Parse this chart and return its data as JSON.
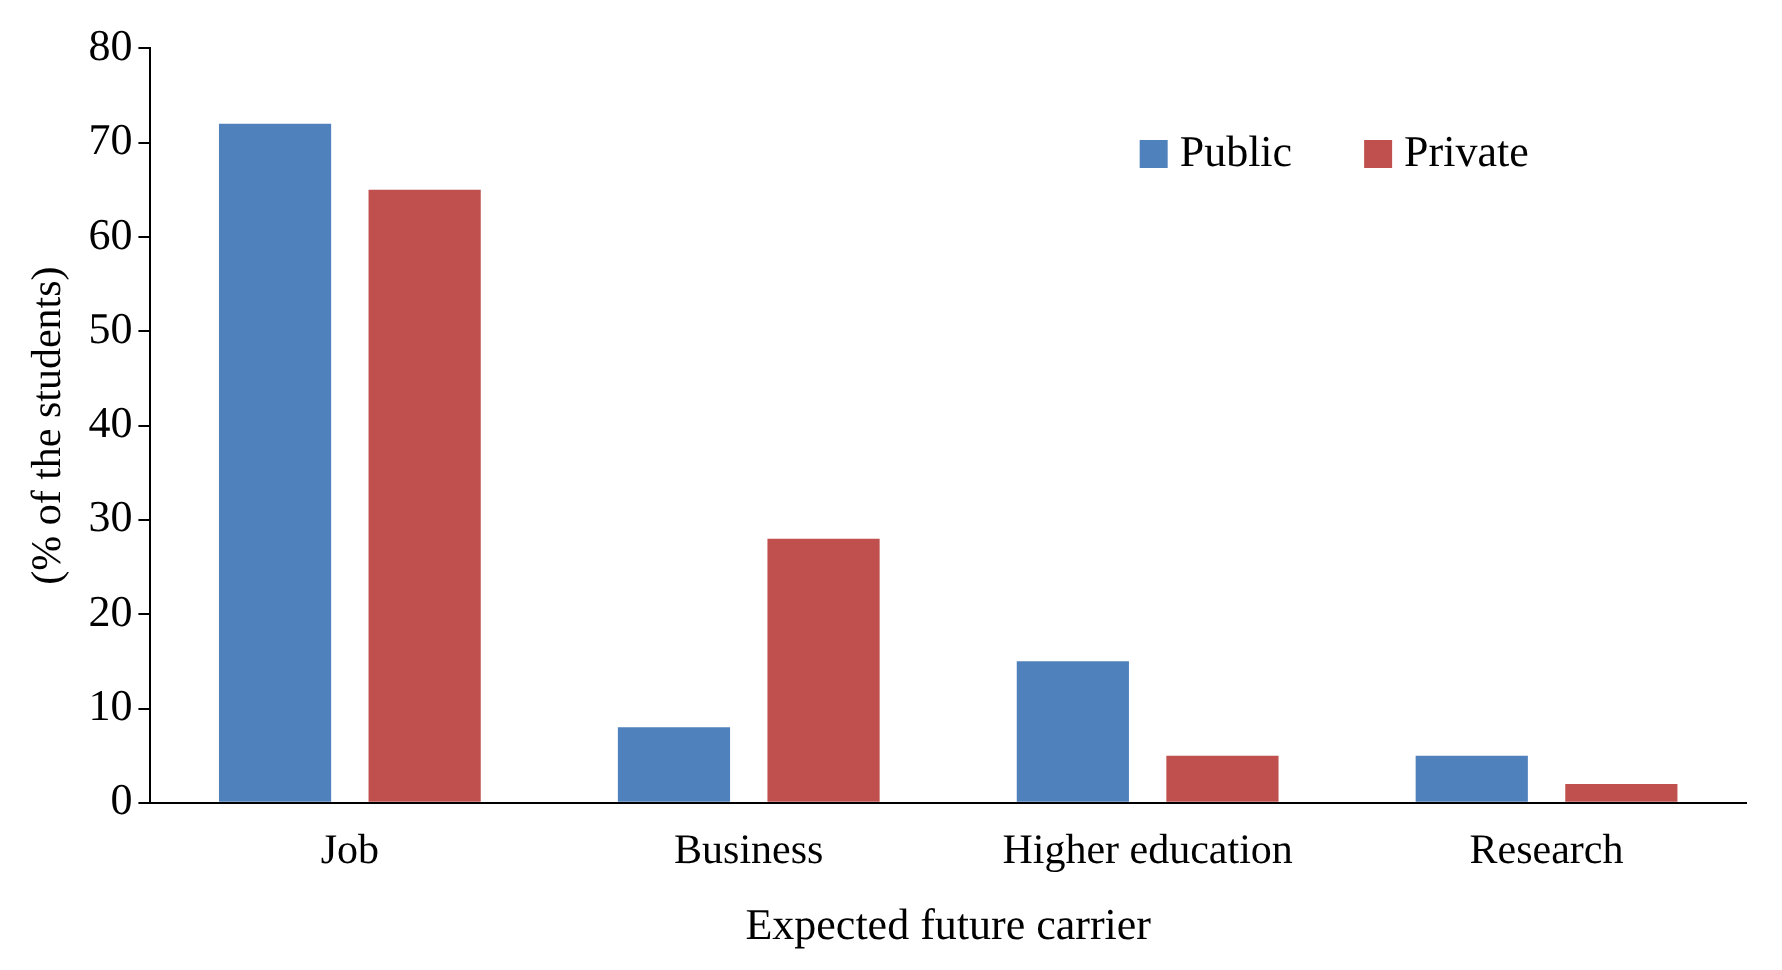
{
  "chart_data": {
    "type": "bar",
    "xlabel": "Expected future carrier",
    "ylabel": "(% of the students)",
    "categories": [
      "Job",
      "Business",
      "Higher education",
      "Research"
    ],
    "series": [
      {
        "name": "Public",
        "color": "#4f81bd",
        "values": [
          72,
          8,
          15,
          5
        ]
      },
      {
        "name": "Private",
        "color": "#c0504d",
        "values": [
          65,
          28,
          5,
          2
        ]
      }
    ],
    "ylim": [
      0,
      80
    ],
    "yticks": [
      0,
      10,
      20,
      30,
      40,
      50,
      60,
      70,
      80
    ],
    "grid": false,
    "legend": "top right"
  }
}
